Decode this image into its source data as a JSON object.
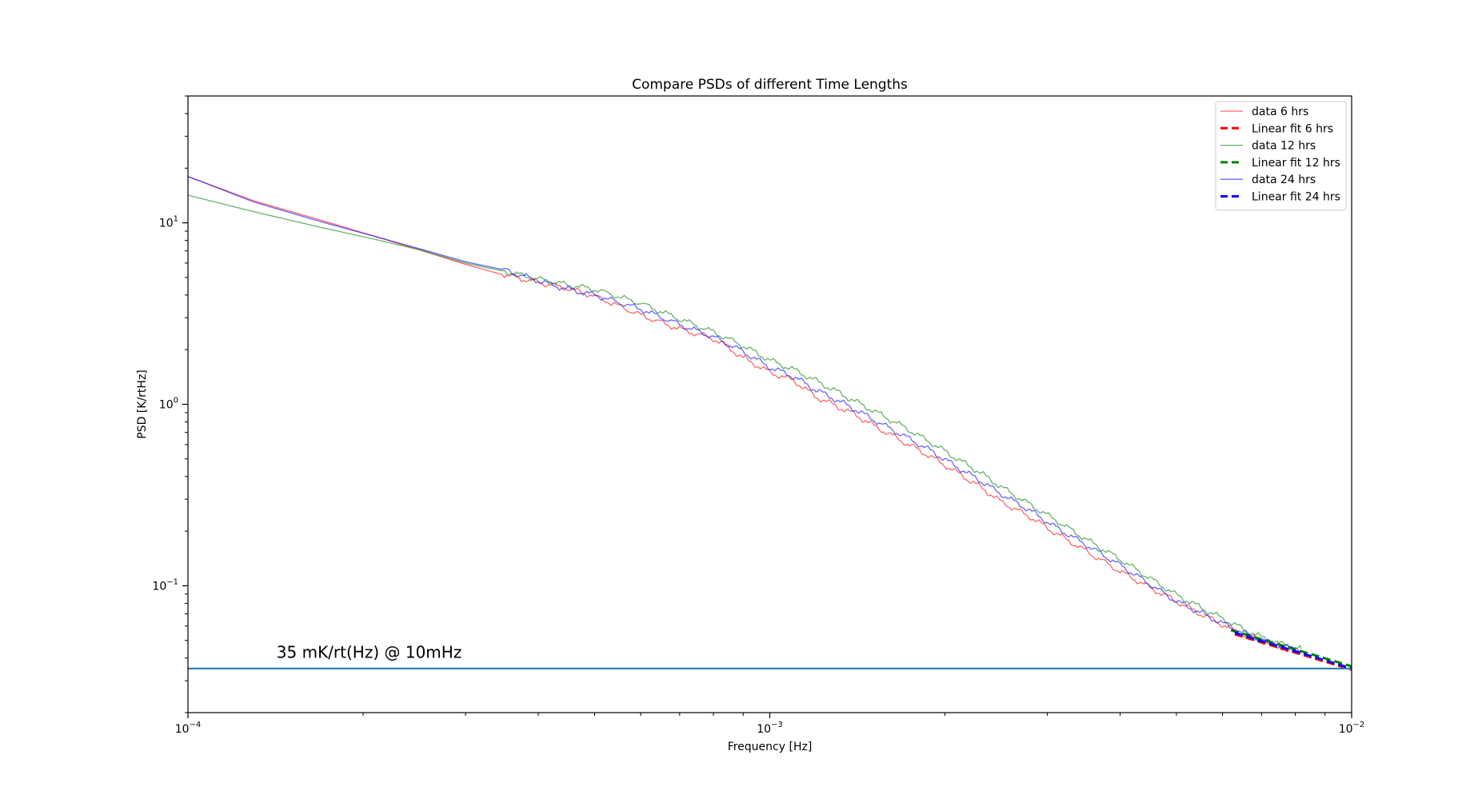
{
  "chart_data": {
    "type": "line",
    "title": "Compare PSDs of different Time Lengths",
    "xlabel": "Frequency [Hz]",
    "ylabel": "PSD [K/rtHz]",
    "xscale": "log",
    "yscale": "log",
    "xlim": [
      0.0001,
      0.01
    ],
    "ylim": [
      0.02,
      50
    ],
    "x_major_ticks": [
      {
        "value": 0.0001,
        "base": "10",
        "exp": "−4"
      },
      {
        "value": 0.001,
        "base": "10",
        "exp": "−3"
      },
      {
        "value": 0.01,
        "base": "10",
        "exp": "−2"
      }
    ],
    "y_major_ticks": [
      {
        "value": 0.1,
        "base": "10",
        "exp": "−1"
      },
      {
        "value": 1,
        "base": "10",
        "exp": "0"
      },
      {
        "value": 10,
        "base": "10",
        "exp": "1"
      }
    ],
    "grid": false,
    "legend_position": "top-right",
    "annotation": {
      "text": "35 mK/rt(Hz) @ 10mHz",
      "x": 0.000142,
      "y": 0.04
    },
    "hline": {
      "y": 0.035,
      "color": "#1f77b4"
    },
    "series": [
      {
        "name": "data 6 hrs",
        "color": "#ff0000",
        "style": "solid",
        "opacity": 0.6,
        "x": [
          0.0001,
          0.00013,
          0.00017,
          0.00021,
          0.00025,
          0.0003,
          0.00035,
          0.0004,
          0.00045,
          0.0005,
          0.0006,
          0.0007,
          0.0008,
          0.00085,
          0.0009,
          0.001,
          0.0011,
          0.0012,
          0.0013,
          0.0014,
          0.0015,
          0.0017,
          0.0019,
          0.0021,
          0.0023,
          0.0025,
          0.0028,
          0.0031,
          0.0035,
          0.004,
          0.0045,
          0.005,
          0.0055,
          0.006,
          0.0065,
          0.007,
          0.0075,
          0.0082
        ],
        "y": [
          18.0,
          13.2,
          10.3,
          8.4,
          7.1,
          5.9,
          5.15,
          4.7,
          4.35,
          3.95,
          3.1,
          2.6,
          2.3,
          2.05,
          1.8,
          1.5,
          1.35,
          1.1,
          0.98,
          0.88,
          0.77,
          0.62,
          0.51,
          0.42,
          0.35,
          0.29,
          0.24,
          0.195,
          0.155,
          0.12,
          0.098,
          0.082,
          0.07,
          0.061,
          0.054,
          0.05,
          0.046,
          0.043
        ]
      },
      {
        "name": "Linear fit 6 hrs",
        "color": "#ff0000",
        "style": "dashed",
        "x": [
          0.0063,
          0.01
        ],
        "y": [
          0.054,
          0.0345
        ]
      },
      {
        "name": "data 12 hrs",
        "color": "#008000",
        "style": "solid",
        "opacity": 0.6,
        "x": [
          0.0001,
          0.00013,
          0.00017,
          0.00021,
          0.00025,
          0.0003,
          0.00035,
          0.0004,
          0.00045,
          0.0005,
          0.0006,
          0.0007,
          0.0008,
          0.0009,
          0.001,
          0.0011,
          0.0012,
          0.0013,
          0.0014,
          0.0015,
          0.0017,
          0.0019,
          0.0021,
          0.0023,
          0.0025,
          0.0028,
          0.0031,
          0.0035,
          0.004,
          0.0045,
          0.005,
          0.0055,
          0.006,
          0.0065,
          0.007,
          0.0075,
          0.0082
        ],
        "y": [
          14.2,
          11.5,
          9.4,
          8.1,
          7.1,
          6.0,
          5.4,
          4.9,
          4.55,
          4.3,
          3.6,
          2.95,
          2.5,
          2.1,
          1.75,
          1.55,
          1.35,
          1.18,
          1.04,
          0.93,
          0.75,
          0.61,
          0.5,
          0.42,
          0.35,
          0.28,
          0.23,
          0.18,
          0.14,
          0.11,
          0.089,
          0.076,
          0.066,
          0.058,
          0.052,
          0.048,
          0.045
        ]
      },
      {
        "name": "Linear fit 12 hrs",
        "color": "#008000",
        "style": "dashed",
        "x": [
          0.0062,
          0.01
        ],
        "y": [
          0.057,
          0.036
        ]
      },
      {
        "name": "data 24 hrs",
        "color": "#0000ff",
        "style": "solid",
        "opacity": 0.6,
        "x": [
          0.0001,
          0.00013,
          0.00017,
          0.00021,
          0.00025,
          0.0003,
          0.00035,
          0.0004,
          0.00045,
          0.0005,
          0.0006,
          0.0007,
          0.0008,
          0.0009,
          0.001,
          0.0011,
          0.0012,
          0.0013,
          0.0014,
          0.0015,
          0.0017,
          0.0019,
          0.0021,
          0.0023,
          0.0025,
          0.0028,
          0.0031,
          0.0035,
          0.004,
          0.0045,
          0.005,
          0.0055,
          0.006,
          0.0065,
          0.007,
          0.0075,
          0.0082
        ],
        "y": [
          18.0,
          13.0,
          10.1,
          8.4,
          7.2,
          6.1,
          5.5,
          4.8,
          4.3,
          4.0,
          3.35,
          2.75,
          2.35,
          1.95,
          1.6,
          1.42,
          1.2,
          1.06,
          0.94,
          0.83,
          0.67,
          0.55,
          0.45,
          0.38,
          0.32,
          0.26,
          0.21,
          0.168,
          0.13,
          0.102,
          0.082,
          0.071,
          0.062,
          0.055,
          0.05,
          0.047,
          0.044
        ]
      },
      {
        "name": "Linear fit 24 hrs",
        "color": "#0000ff",
        "style": "dashed",
        "x": [
          0.0063,
          0.01
        ],
        "y": [
          0.055,
          0.035
        ]
      }
    ]
  }
}
